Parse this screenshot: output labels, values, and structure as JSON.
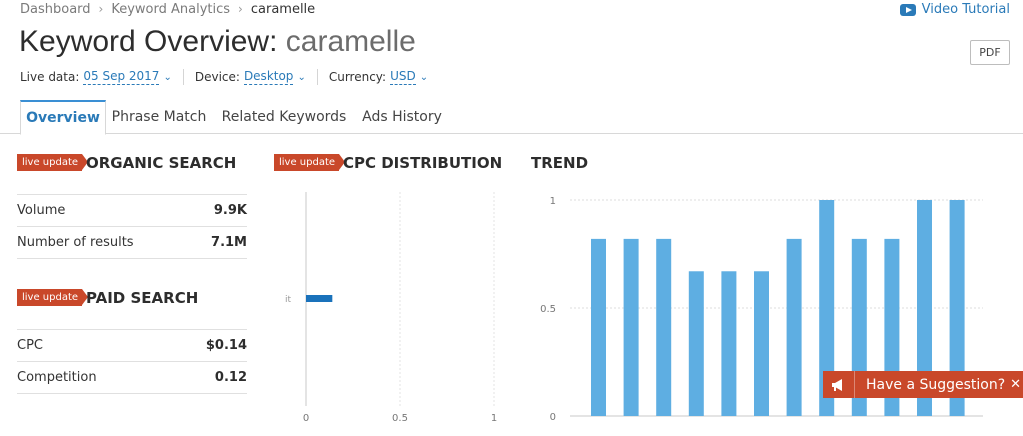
{
  "breadcrumb": {
    "items": [
      "Dashboard",
      "Keyword Analytics"
    ],
    "current": "caramelle"
  },
  "video_tutorial": {
    "label": "Video Tutorial",
    "icon": "video-play-icon"
  },
  "header": {
    "title": "Keyword Overview:",
    "keyword": "caramelle",
    "pdf_label": "PDF"
  },
  "filters": {
    "live_label": "Live data:",
    "live_value": "05 Sep 2017",
    "device_label": "Device:",
    "device_value": "Desktop",
    "currency_label": "Currency:",
    "currency_value": "USD"
  },
  "tabs": [
    {
      "label": "Overview",
      "active": true
    },
    {
      "label": "Phrase Match",
      "active": false
    },
    {
      "label": "Related Keywords",
      "active": false
    },
    {
      "label": "Ads History",
      "active": false
    }
  ],
  "organic": {
    "badge": "live update",
    "title": "ORGANIC SEARCH",
    "rows": [
      {
        "label": "Volume",
        "value": "9.9K"
      },
      {
        "label": "Number of results",
        "value": "7.1M"
      }
    ]
  },
  "paid": {
    "badge": "live update",
    "title": "PAID SEARCH",
    "rows": [
      {
        "label": "CPC",
        "value": "$0.14"
      },
      {
        "label": "Competition",
        "value": "0.12"
      }
    ]
  },
  "cpc_section": {
    "badge": "live update",
    "title": "CPC DISTRIBUTION"
  },
  "trend_section": {
    "title": "TREND"
  },
  "chart_data": [
    {
      "type": "bar",
      "orientation": "horizontal",
      "categories": [
        "it"
      ],
      "values": [
        0.14
      ],
      "x_ticks": [
        "0",
        "0.5",
        "1"
      ],
      "xlim": [
        0,
        1
      ],
      "color": "#1a72bb"
    },
    {
      "type": "bar",
      "values": [
        0.82,
        0.82,
        0.82,
        0.67,
        0.67,
        0.67,
        0.82,
        1.0,
        0.82,
        0.82,
        1.0,
        1.0
      ],
      "y_ticks": [
        "0",
        "0.5",
        "1"
      ],
      "ylim": [
        0,
        1
      ],
      "grid": true,
      "color": "#5eaee2"
    }
  ],
  "suggestion": {
    "label": "Have a Suggestion?",
    "close": "✕"
  }
}
